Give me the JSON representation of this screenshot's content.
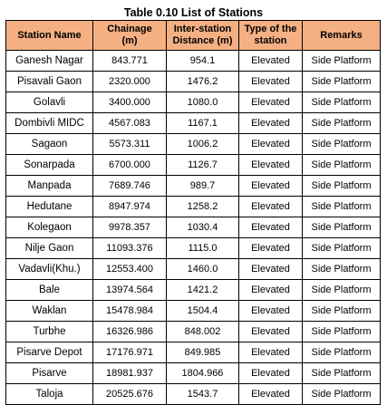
{
  "title": "Table 0.10 List of Stations",
  "header_color": "#f4b083",
  "columns": [
    [
      "Station Name"
    ],
    [
      "Chainage",
      "(m)"
    ],
    [
      "Inter-station",
      "Distance (m)"
    ],
    [
      "Type of the",
      "station"
    ],
    [
      "Remarks"
    ]
  ],
  "rows": [
    [
      "Ganesh Nagar",
      "843.771",
      "954.1",
      "Elevated",
      "Side Platform"
    ],
    [
      "Pisavali Gaon",
      "2320.000",
      "1476.2",
      "Elevated",
      "Side Platform"
    ],
    [
      "Golavli",
      "3400.000",
      "1080.0",
      "Elevated",
      "Side Platform"
    ],
    [
      "Dombivli MIDC",
      "4567.083",
      "1167.1",
      "Elevated",
      "Side Platform"
    ],
    [
      "Sagaon",
      "5573.311",
      "1006.2",
      "Elevated",
      "Side Platform"
    ],
    [
      "Sonarpada",
      "6700.000",
      "1126.7",
      "Elevated",
      "Side Platform"
    ],
    [
      "Manpada",
      "7689.746",
      "989.7",
      "Elevated",
      "Side Platform"
    ],
    [
      "Hedutane",
      "8947.974",
      "1258.2",
      "Elevated",
      "Side Platform"
    ],
    [
      "Kolegaon",
      "9978.357",
      "1030.4",
      "Elevated",
      "Side Platform"
    ],
    [
      "Nilje Gaon",
      "11093.376",
      "1115.0",
      "Elevated",
      "Side Platform"
    ],
    [
      "Vadavli(Khu.)",
      "12553.400",
      "1460.0",
      "Elevated",
      "Side Platform"
    ],
    [
      "Bale",
      "13974.564",
      "1421.2",
      "Elevated",
      "Side Platform"
    ],
    [
      "Waklan",
      "15478.984",
      "1504.4",
      "Elevated",
      "Side Platform"
    ],
    [
      "Turbhe",
      "16326.986",
      "848.002",
      "Elevated",
      "Side Platform"
    ],
    [
      "Pisarve Depot",
      "17176.971",
      "849.985",
      "Elevated",
      "Side Platform"
    ],
    [
      "Pisarve",
      "18981.937",
      "1804.966",
      "Elevated",
      "Side Platform"
    ],
    [
      "Taloja",
      "20525.676",
      "1543.7",
      "Elevated",
      "Side Platform"
    ]
  ]
}
